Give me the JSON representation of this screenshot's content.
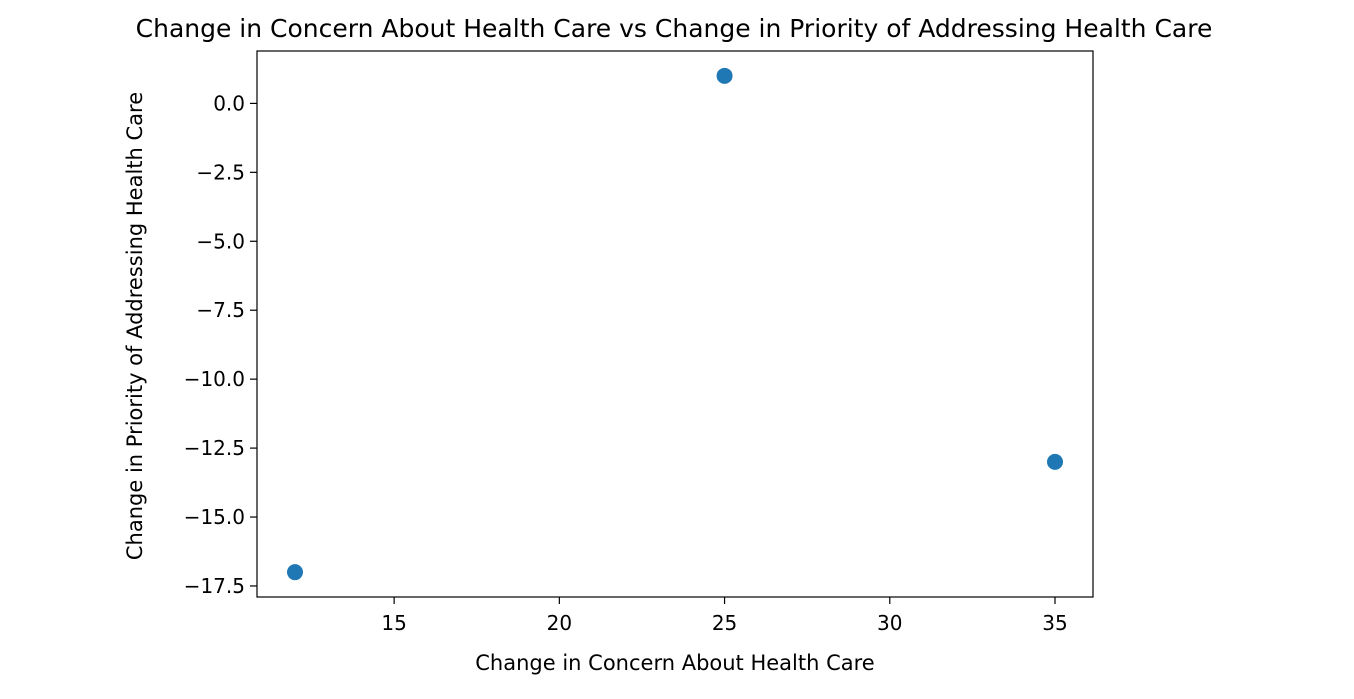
{
  "chart_data": {
    "type": "scatter",
    "title": "Change in Concern About Health Care vs Change in Priority of Addressing Health Care",
    "xlabel": "Change in Concern About Health Care",
    "ylabel": "Change in Priority of Addressing Health Care",
    "xlim": [
      10.85,
      36.15
    ],
    "ylim": [
      -17.9,
      1.9
    ],
    "xticks": [
      15,
      20,
      25,
      30,
      35
    ],
    "xtick_labels": [
      "15",
      "20",
      "25",
      "30",
      "35"
    ],
    "yticks": [
      0,
      -2.5,
      -5,
      -7.5,
      -10,
      -12.5,
      -15,
      -17.5
    ],
    "ytick_labels": [
      "0.0",
      "−2.5",
      "−5.0",
      "−7.5",
      "−10.0",
      "−12.5",
      "−15.0",
      "−17.5"
    ],
    "grid": false,
    "legend": "none",
    "marker_color": "#1f77b4",
    "points": [
      {
        "x": 12,
        "y": -17
      },
      {
        "x": 25,
        "y": 1
      },
      {
        "x": 35,
        "y": -13
      }
    ]
  }
}
